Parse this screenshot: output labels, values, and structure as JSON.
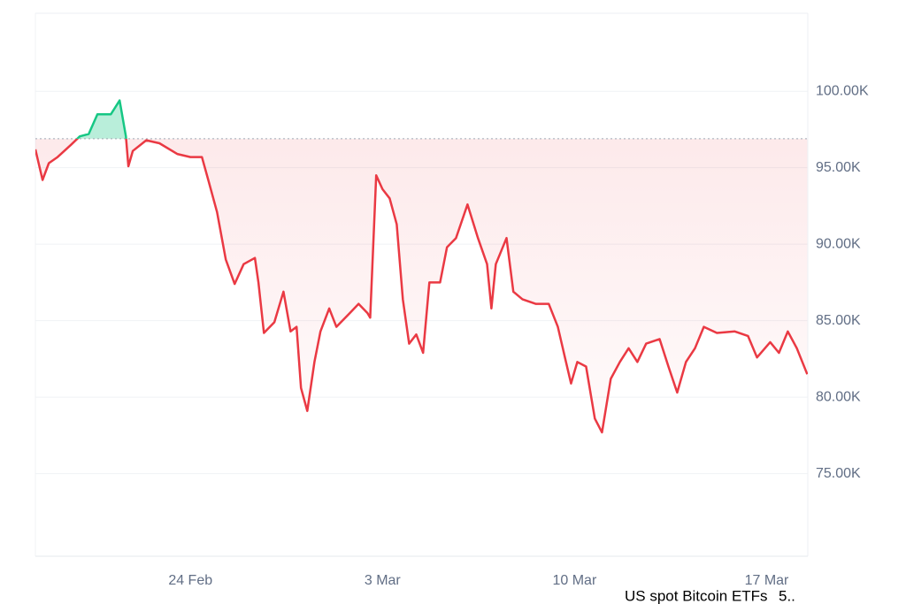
{
  "chart_data": {
    "type": "line",
    "x": [
      49.35,
      49.61,
      49.84,
      50.16,
      50.65,
      50.97,
      51.29,
      51.61,
      52.1,
      52.42,
      52.65,
      52.74,
      52.9,
      53.39,
      53.87,
      54.52,
      55,
      55.42,
      55.65,
      55.97,
      56.29,
      56.61,
      56.94,
      57.35,
      57.48,
      57.68,
      58.06,
      58.39,
      58.65,
      58.87,
      59.03,
      59.26,
      59.52,
      59.74,
      60.06,
      60.32,
      60.81,
      61.13,
      61.45,
      61.55,
      61.77,
      62,
      62.26,
      62.52,
      62.74,
      62.97,
      63.23,
      63.48,
      63.71,
      64.1,
      64.35,
      64.68,
      65.1,
      65.48,
      65.81,
      65.97,
      66.13,
      66.52,
      66.77,
      67.1,
      67.58,
      68.06,
      68.39,
      68.65,
      68.87,
      69.1,
      69.42,
      69.74,
      70,
      70.32,
      70.65,
      70.97,
      71.29,
      71.61,
      72.1,
      72.42,
      72.74,
      73.06,
      73.39,
      73.71,
      74.19,
      74.84,
      75.32,
      75.65,
      76.13,
      76.45,
      76.77,
      77.1,
      77.48
    ],
    "series": [
      {
        "values": [
          96200,
          94200,
          95300,
          95700,
          96500,
          97050,
          97200,
          98500,
          98500,
          99400,
          97050,
          95100,
          96100,
          96800,
          96600,
          95900,
          95700,
          95700,
          94200,
          92100,
          89000,
          87400,
          88700,
          89100,
          87500,
          84200,
          84900,
          86900,
          84300,
          84600,
          80600,
          79100,
          82300,
          84300,
          85800,
          84600,
          85500,
          86100,
          85500,
          85200,
          94500,
          93600,
          93000,
          91300,
          86400,
          83500,
          84100,
          82900,
          87500,
          87500,
          89800,
          90400,
          92600,
          90400,
          88700,
          85800,
          88700,
          90400,
          86900,
          86400,
          86100,
          86100,
          84600,
          82600,
          80900,
          82300,
          82000,
          78600,
          77700,
          81200,
          82300,
          83200,
          82300,
          83500,
          83800,
          82000,
          80300,
          82300,
          83200,
          84600,
          84200,
          84300,
          84000,
          82600,
          83600,
          82900,
          84300,
          83200,
          81500
        ]
      }
    ],
    "baseline": 96900,
    "color_up": "#16c784",
    "color_down": "#ea3943",
    "xlim": [
      49.35,
      77.5
    ],
    "xticks": [
      {
        "value": 55,
        "label": "24 Feb"
      },
      {
        "value": 62,
        "label": "3 Mar"
      },
      {
        "value": 69,
        "label": "10 Mar"
      },
      {
        "value": 76,
        "label": "17 Mar"
      }
    ],
    "ylim": [
      69600,
      105100
    ],
    "yticks": [
      {
        "value": 75000,
        "label": "75.00K"
      },
      {
        "value": 80000,
        "label": "80.00K"
      },
      {
        "value": 85000,
        "label": "85.00K"
      },
      {
        "value": 90000,
        "label": "90.00K"
      },
      {
        "value": 95000,
        "label": "95.00K"
      },
      {
        "value": 100000,
        "label": "100.00K"
      }
    ],
    "grid": true,
    "annotations": [
      "US spot Bitcoin ETFs",
      "5.."
    ]
  }
}
